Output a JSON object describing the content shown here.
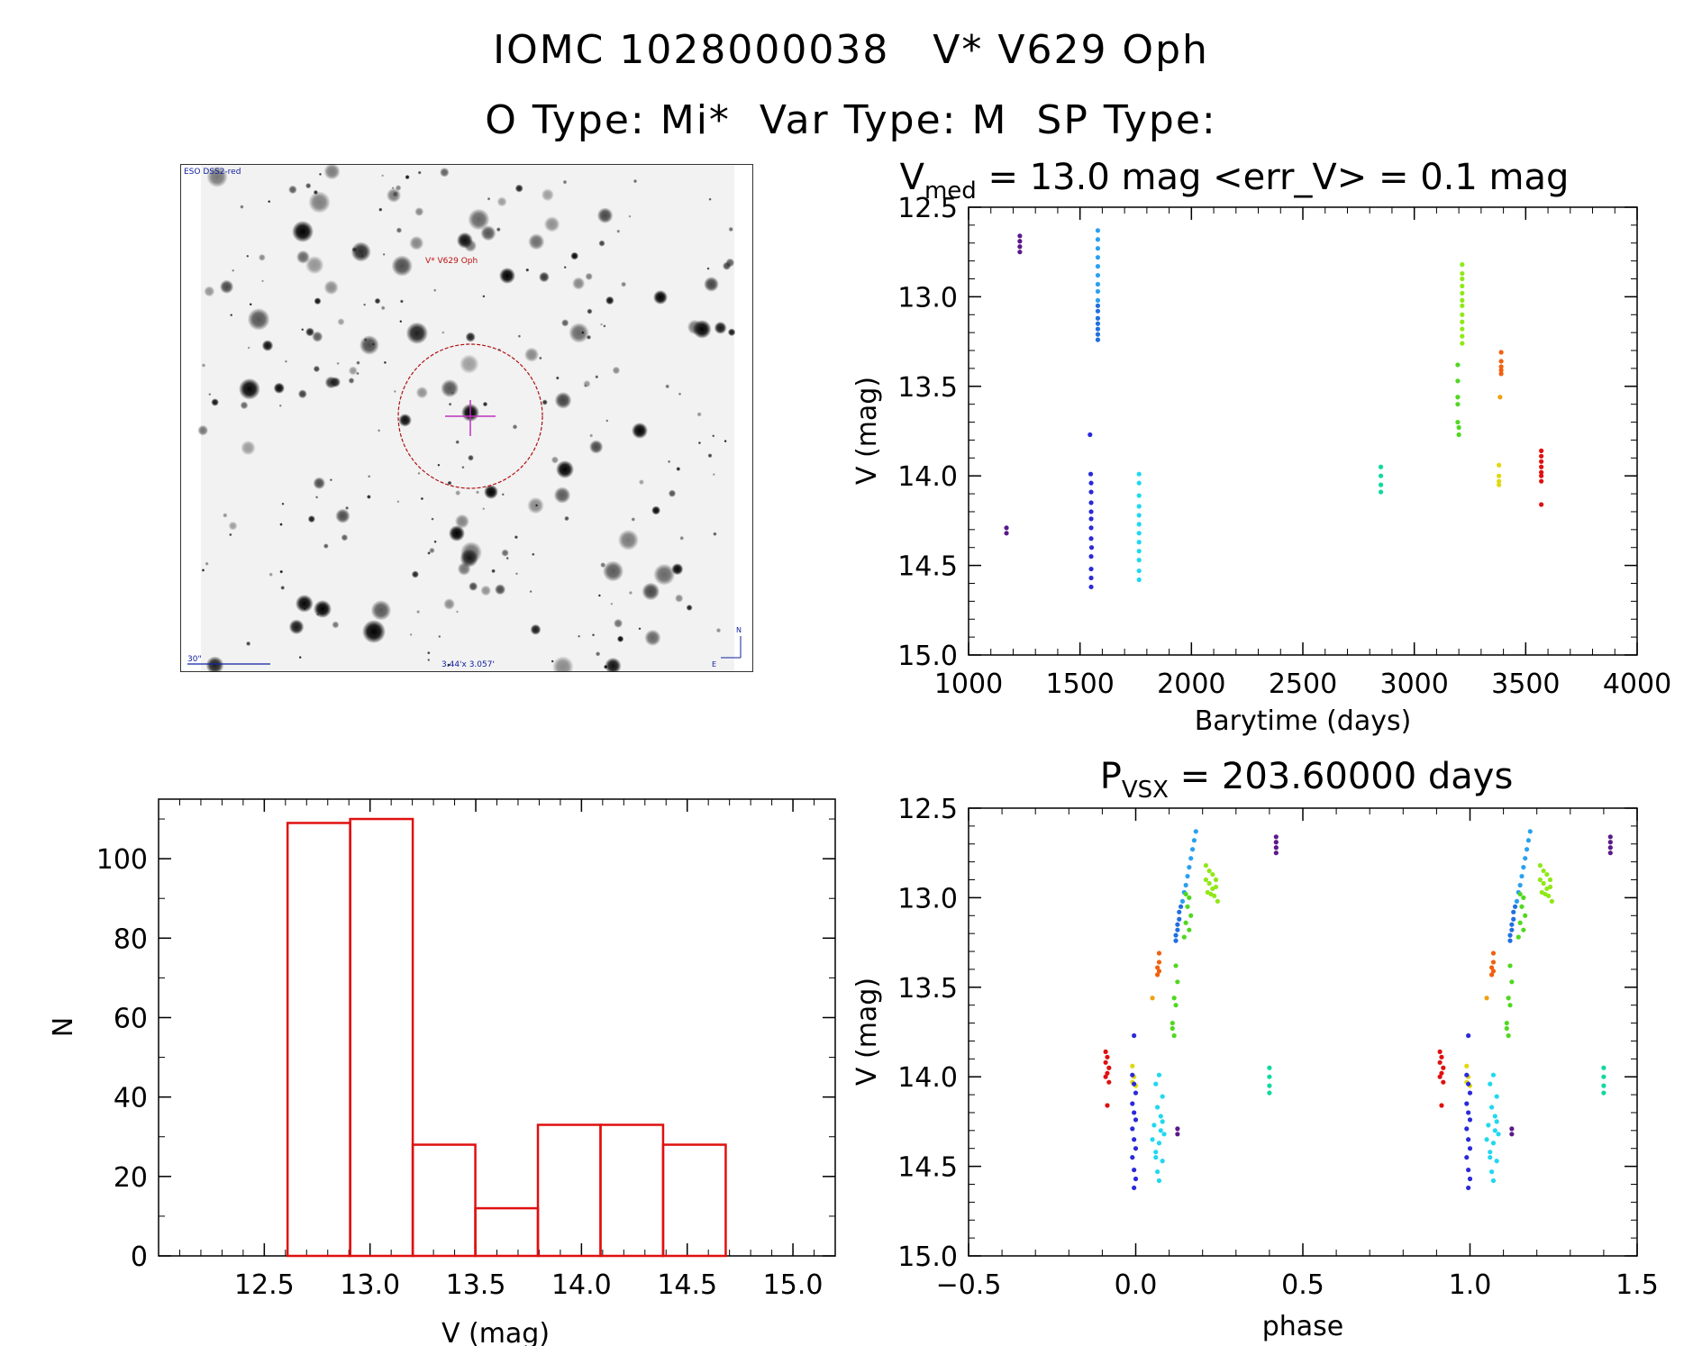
{
  "header": {
    "title": "IOMC 1028000038   V* V629 Oph",
    "subtitle": "O Type: Mi*  Var Type: M  SP Type:"
  },
  "finder_chart": {
    "survey_label": "ESO DSS2-red",
    "target_label": "V* V629 Oph",
    "scale_label": "30\"",
    "field_label": "3.44'x 3.057'",
    "north_label": "N",
    "east_label": "E"
  },
  "chart_data": [
    {
      "type": "scatter",
      "title_main": "V",
      "title_sub": "med",
      "title_rest": " = 13.0 mag <err_V> = 0.1 mag",
      "xlabel": "Barytime (days)",
      "ylabel": "V (mag)",
      "xlim": [
        1000,
        4000
      ],
      "ylim": [
        15.0,
        12.5
      ],
      "xticks": [
        "1000",
        "1500",
        "2000",
        "2500",
        "3000",
        "3500",
        "4000"
      ],
      "yticks": [
        "12.5",
        "13.0",
        "13.5",
        "14.0",
        "14.5",
        "15.0"
      ],
      "series": [
        {
          "color": "#5a1a8a",
          "x": [
            1170,
            1170,
            1230,
            1230,
            1230,
            1230
          ],
          "y": [
            14.29,
            14.32,
            12.66,
            12.69,
            12.72,
            12.75
          ]
        },
        {
          "color": "#2a2ad8",
          "x": [
            1545,
            1548,
            1550,
            1550,
            1550,
            1550,
            1550,
            1550,
            1550,
            1552,
            1550,
            1550,
            1550,
            1550
          ],
          "y": [
            13.77,
            13.99,
            14.04,
            14.09,
            14.15,
            14.2,
            14.24,
            14.29,
            14.35,
            14.4,
            14.45,
            14.52,
            14.57,
            14.62
          ]
        },
        {
          "color": "#2070e0",
          "x": [
            1580,
            1580,
            1580,
            1580,
            1580,
            1580,
            1580
          ],
          "y": [
            13.24,
            13.21,
            13.18,
            13.15,
            13.12,
            13.08,
            13.05
          ]
        },
        {
          "color": "#2aa0f0",
          "x": [
            1580,
            1580,
            1580,
            1580,
            1580,
            1580,
            1580,
            1580,
            1580
          ],
          "y": [
            12.63,
            12.68,
            12.73,
            12.78,
            12.83,
            12.88,
            12.93,
            12.97,
            13.02
          ]
        },
        {
          "color": "#20d8f0",
          "x": [
            1765,
            1765,
            1765,
            1765,
            1765,
            1765,
            1765,
            1765,
            1765,
            1765,
            1765,
            1765
          ],
          "y": [
            13.99,
            14.04,
            14.11,
            14.17,
            14.22,
            14.27,
            14.32,
            14.37,
            14.42,
            14.47,
            14.53,
            14.58
          ]
        },
        {
          "color": "#10d8a0",
          "x": [
            2850,
            2850,
            2850,
            2850
          ],
          "y": [
            13.95,
            14.0,
            14.05,
            14.09
          ]
        },
        {
          "color": "#50d820",
          "x": [
            3195,
            3195,
            3195,
            3195,
            3195,
            3200,
            3200
          ],
          "y": [
            13.38,
            13.47,
            13.56,
            13.6,
            13.7,
            13.73,
            13.77
          ]
        },
        {
          "color": "#90e818",
          "x": [
            3215,
            3215,
            3215,
            3215,
            3215,
            3215,
            3215,
            3215,
            3215,
            3215,
            3215,
            3215
          ],
          "y": [
            12.82,
            12.87,
            12.9,
            12.94,
            12.98,
            13.02,
            13.05,
            13.1,
            13.14,
            13.18,
            13.22,
            13.26
          ]
        },
        {
          "color": "#e0d810",
          "x": [
            3380,
            3380,
            3380,
            3380
          ],
          "y": [
            13.94,
            14.0,
            14.03,
            14.05
          ]
        },
        {
          "color": "#f0a010",
          "x": [
            3385
          ],
          "y": [
            13.56
          ]
        },
        {
          "color": "#f06010",
          "x": [
            3390,
            3390,
            3390,
            3390,
            3390
          ],
          "y": [
            13.31,
            13.36,
            13.39,
            13.41,
            13.43
          ]
        },
        {
          "color": "#e01010",
          "x": [
            3570,
            3570,
            3570,
            3570,
            3570,
            3570,
            3570,
            3570
          ],
          "y": [
            13.86,
            13.89,
            13.92,
            13.95,
            13.98,
            14.0,
            14.03,
            14.16
          ]
        }
      ]
    },
    {
      "type": "bar",
      "title": "",
      "xlabel": "V (mag)",
      "ylabel": "N",
      "xlim": [
        12.0,
        15.2
      ],
      "ylim": [
        0,
        115
      ],
      "xticks": [
        "12.5",
        "13.0",
        "13.5",
        "14.0",
        "14.5",
        "15.0"
      ],
      "yticks": [
        "0",
        "20",
        "40",
        "60",
        "80",
        "100"
      ],
      "bin_edges": [
        12.61,
        12.906,
        13.202,
        13.498,
        13.794,
        14.09,
        14.386,
        14.682
      ],
      "values": [
        109,
        110,
        28,
        12,
        33,
        33,
        28
      ],
      "color": "#e01010"
    },
    {
      "type": "scatter",
      "title_main": "P",
      "title_sub": "VSX",
      "title_rest": " = 203.60000 days",
      "xlabel": "phase",
      "ylabel": "V (mag)",
      "xlim": [
        -0.5,
        1.5
      ],
      "ylim": [
        15.0,
        12.5
      ],
      "xticks": [
        "−0.5",
        "0.0",
        "0.5",
        "1.0",
        "1.5"
      ],
      "yticks": [
        "12.5",
        "13.0",
        "13.5",
        "14.0",
        "14.5",
        "15.0"
      ],
      "series": [
        {
          "color": "#e01010",
          "x": [
            -0.09,
            -0.085,
            -0.09,
            -0.08,
            -0.085,
            -0.09,
            -0.08,
            -0.085
          ],
          "y": [
            13.86,
            13.89,
            13.92,
            13.95,
            13.98,
            14.0,
            14.03,
            14.16
          ]
        },
        {
          "color": "#e0d810",
          "x": [
            -0.01,
            -0.005,
            -0.01,
            0.0
          ],
          "y": [
            13.94,
            14.0,
            14.03,
            14.05
          ]
        },
        {
          "color": "#2a2ad8",
          "x": [
            -0.005,
            -0.01,
            -0.005,
            0.0,
            -0.01,
            -0.005,
            0.0,
            -0.01,
            -0.005,
            0.0,
            -0.01,
            -0.005,
            0.0,
            -0.005
          ],
          "y": [
            13.77,
            13.99,
            14.04,
            14.09,
            14.15,
            14.2,
            14.24,
            14.29,
            14.35,
            14.4,
            14.45,
            14.52,
            14.57,
            14.62
          ]
        },
        {
          "color": "#f0a010",
          "x": [
            0.05
          ],
          "y": [
            13.56
          ]
        },
        {
          "color": "#f06010",
          "x": [
            0.07,
            0.07,
            0.065,
            0.07,
            0.065
          ],
          "y": [
            13.31,
            13.36,
            13.39,
            13.41,
            13.43
          ]
        },
        {
          "color": "#20d8f0",
          "x": [
            0.07,
            0.06,
            0.08,
            0.065,
            0.075,
            0.055,
            0.085,
            0.07,
            0.06,
            0.08,
            0.065,
            0.07,
            0.075,
            0.05,
            0.06,
            0.08
          ],
          "y": [
            13.99,
            14.04,
            14.11,
            14.17,
            14.22,
            14.27,
            14.32,
            14.37,
            14.42,
            14.47,
            14.53,
            14.58,
            14.3,
            14.35,
            14.45,
            14.25
          ]
        },
        {
          "color": "#50d820",
          "x": [
            0.11,
            0.12,
            0.115,
            0.125,
            0.12,
            0.11,
            0.115
          ],
          "y": [
            13.7,
            13.6,
            13.56,
            13.47,
            13.38,
            13.73,
            13.77
          ]
        },
        {
          "color": "#5a1a8a",
          "x": [
            0.125,
            0.125,
            0.42,
            0.42,
            0.42,
            0.42
          ],
          "y": [
            14.29,
            14.32,
            12.66,
            12.69,
            12.72,
            12.75
          ]
        },
        {
          "color": "#2070e0",
          "x": [
            0.12,
            0.12,
            0.125,
            0.125,
            0.13,
            0.13,
            0.135
          ],
          "y": [
            13.24,
            13.21,
            13.18,
            13.15,
            13.12,
            13.08,
            13.05
          ]
        },
        {
          "color": "#2aa0f0",
          "x": [
            0.18,
            0.175,
            0.17,
            0.165,
            0.16,
            0.155,
            0.15,
            0.145,
            0.14
          ],
          "y": [
            12.63,
            12.68,
            12.73,
            12.78,
            12.83,
            12.88,
            12.93,
            12.97,
            13.02
          ]
        },
        {
          "color": "#50d820",
          "x": [
            0.15,
            0.16,
            0.155,
            0.165,
            0.15,
            0.16,
            0.145
          ],
          "y": [
            12.98,
            13.0,
            13.05,
            13.1,
            13.14,
            13.18,
            13.22
          ]
        },
        {
          "color": "#90e818",
          "x": [
            0.21,
            0.22,
            0.23,
            0.24,
            0.21,
            0.22,
            0.23,
            0.24,
            0.215,
            0.225,
            0.235,
            0.245
          ],
          "y": [
            12.82,
            12.85,
            12.87,
            12.9,
            12.9,
            12.92,
            12.95,
            12.94,
            12.97,
            12.98,
            12.99,
            13.02
          ]
        },
        {
          "color": "#10d8a0",
          "x": [
            0.4,
            0.4,
            0.4,
            0.4
          ],
          "y": [
            13.95,
            14.0,
            14.05,
            14.09
          ]
        },
        {
          "color": "#e01010",
          "x": [
            0.91,
            0.915,
            0.91,
            0.92,
            0.915,
            0.91,
            0.92,
            0.915
          ],
          "y": [
            13.86,
            13.89,
            13.92,
            13.95,
            13.98,
            14.0,
            14.03,
            14.16
          ]
        },
        {
          "color": "#e0d810",
          "x": [
            0.99,
            0.995,
            0.99,
            1.0
          ],
          "y": [
            13.94,
            14.0,
            14.03,
            14.05
          ]
        },
        {
          "color": "#2a2ad8",
          "x": [
            0.995,
            0.99,
            0.995,
            1.0,
            0.99,
            0.995,
            1.0,
            0.99,
            0.995,
            1.0,
            0.99,
            0.995,
            1.0,
            0.995
          ],
          "y": [
            13.77,
            13.99,
            14.04,
            14.09,
            14.15,
            14.2,
            14.24,
            14.29,
            14.35,
            14.4,
            14.45,
            14.52,
            14.57,
            14.62
          ]
        },
        {
          "color": "#f0a010",
          "x": [
            1.05
          ],
          "y": [
            13.56
          ]
        },
        {
          "color": "#f06010",
          "x": [
            1.07,
            1.07,
            1.065,
            1.07,
            1.065
          ],
          "y": [
            13.31,
            13.36,
            13.39,
            13.41,
            13.43
          ]
        },
        {
          "color": "#20d8f0",
          "x": [
            1.07,
            1.06,
            1.08,
            1.065,
            1.075,
            1.055,
            1.085,
            1.07,
            1.06,
            1.08,
            1.065,
            1.07,
            1.075,
            1.05,
            1.06,
            1.08
          ],
          "y": [
            13.99,
            14.04,
            14.11,
            14.17,
            14.22,
            14.27,
            14.32,
            14.37,
            14.42,
            14.47,
            14.53,
            14.58,
            14.3,
            14.35,
            14.45,
            14.25
          ]
        },
        {
          "color": "#50d820",
          "x": [
            1.11,
            1.12,
            1.115,
            1.125,
            1.12,
            1.11,
            1.115
          ],
          "y": [
            13.7,
            13.6,
            13.56,
            13.47,
            13.38,
            13.73,
            13.77
          ]
        },
        {
          "color": "#5a1a8a",
          "x": [
            1.125,
            1.125,
            1.42,
            1.42,
            1.42,
            1.42
          ],
          "y": [
            14.29,
            14.32,
            12.66,
            12.69,
            12.72,
            12.75
          ]
        },
        {
          "color": "#2070e0",
          "x": [
            1.12,
            1.12,
            1.125,
            1.125,
            1.13,
            1.13,
            1.135
          ],
          "y": [
            13.24,
            13.21,
            13.18,
            13.15,
            13.12,
            13.08,
            13.05
          ]
        },
        {
          "color": "#2aa0f0",
          "x": [
            1.18,
            1.175,
            1.17,
            1.165,
            1.16,
            1.155,
            1.15,
            1.145,
            1.14
          ],
          "y": [
            12.63,
            12.68,
            12.73,
            12.78,
            12.83,
            12.88,
            12.93,
            12.97,
            13.02
          ]
        },
        {
          "color": "#50d820",
          "x": [
            1.15,
            1.16,
            1.155,
            1.165,
            1.15,
            1.16,
            1.145
          ],
          "y": [
            12.98,
            13.0,
            13.05,
            13.1,
            13.14,
            13.18,
            13.22
          ]
        },
        {
          "color": "#90e818",
          "x": [
            1.21,
            1.22,
            1.23,
            1.24,
            1.21,
            1.22,
            1.23,
            1.24,
            1.215,
            1.225,
            1.235,
            1.245
          ],
          "y": [
            12.82,
            12.85,
            12.87,
            12.9,
            12.9,
            12.92,
            12.95,
            12.94,
            12.97,
            12.98,
            12.99,
            13.02
          ]
        },
        {
          "color": "#10d8a0",
          "x": [
            1.4,
            1.4,
            1.4,
            1.4
          ],
          "y": [
            13.95,
            14.0,
            14.05,
            14.09
          ]
        }
      ]
    }
  ]
}
